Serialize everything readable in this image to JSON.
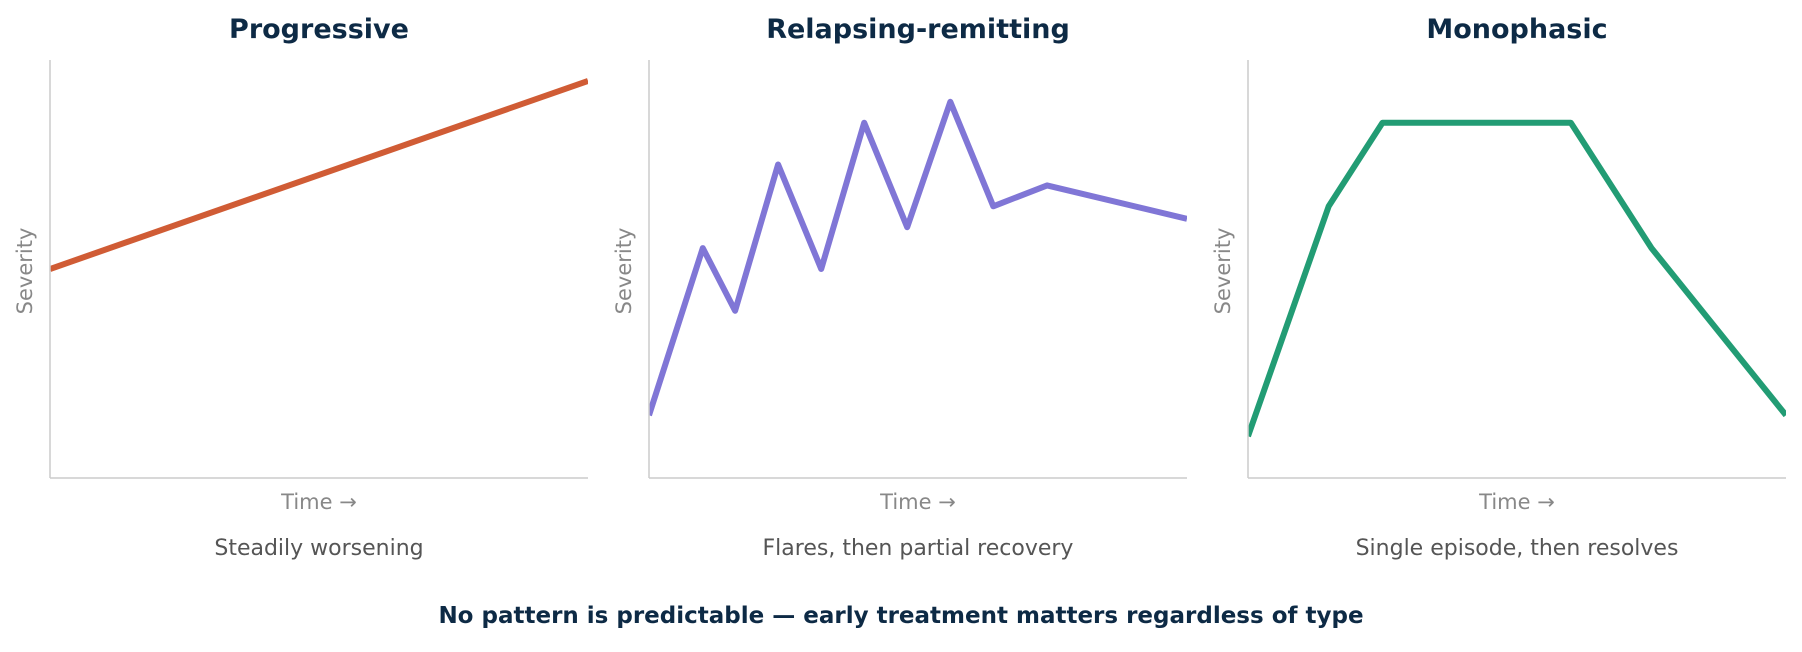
{
  "colors": {
    "title": "#0d2a45",
    "axis_label": "#888888",
    "caption": "#555555",
    "spine": "#cccccc",
    "footer": "#0d2a45"
  },
  "footer_note": "No pattern is predictable — early treatment matters regardless of type",
  "chart_data": [
    {
      "type": "line",
      "title": "Progressive",
      "xlabel": "Time →",
      "ylabel": "Severity",
      "caption": "Steadily worsening",
      "color": "#d05c35",
      "xlim": [
        0,
        10
      ],
      "ylim": [
        0,
        10
      ],
      "grid": false,
      "series": [
        {
          "x": [
            0,
            10
          ],
          "y": [
            5.0,
            9.5
          ]
        }
      ]
    },
    {
      "type": "line",
      "title": "Relapsing-remitting",
      "xlabel": "Time →",
      "ylabel": "Severity",
      "caption": "Flares, then partial recovery",
      "color": "#8076d6",
      "xlim": [
        0,
        10
      ],
      "ylim": [
        0,
        10
      ],
      "grid": false,
      "series": [
        {
          "x": [
            0,
            1.0,
            1.6,
            2.4,
            3.2,
            4.0,
            4.8,
            5.6,
            6.4,
            7.4,
            10
          ],
          "y": [
            1.5,
            5.5,
            4.0,
            7.5,
            5.0,
            8.5,
            6.0,
            9.0,
            6.5,
            7.0,
            6.2
          ]
        }
      ]
    },
    {
      "type": "line",
      "title": "Monophasic",
      "xlabel": "Time →",
      "ylabel": "Severity",
      "caption": "Single episode, then resolves",
      "color": "#229c74",
      "xlim": [
        0,
        10
      ],
      "ylim": [
        0,
        10
      ],
      "grid": false,
      "series": [
        {
          "x": [
            0,
            1.5,
            2.5,
            6.0,
            7.5,
            10
          ],
          "y": [
            1.0,
            6.5,
            8.5,
            8.5,
            5.5,
            1.5
          ]
        }
      ]
    }
  ]
}
